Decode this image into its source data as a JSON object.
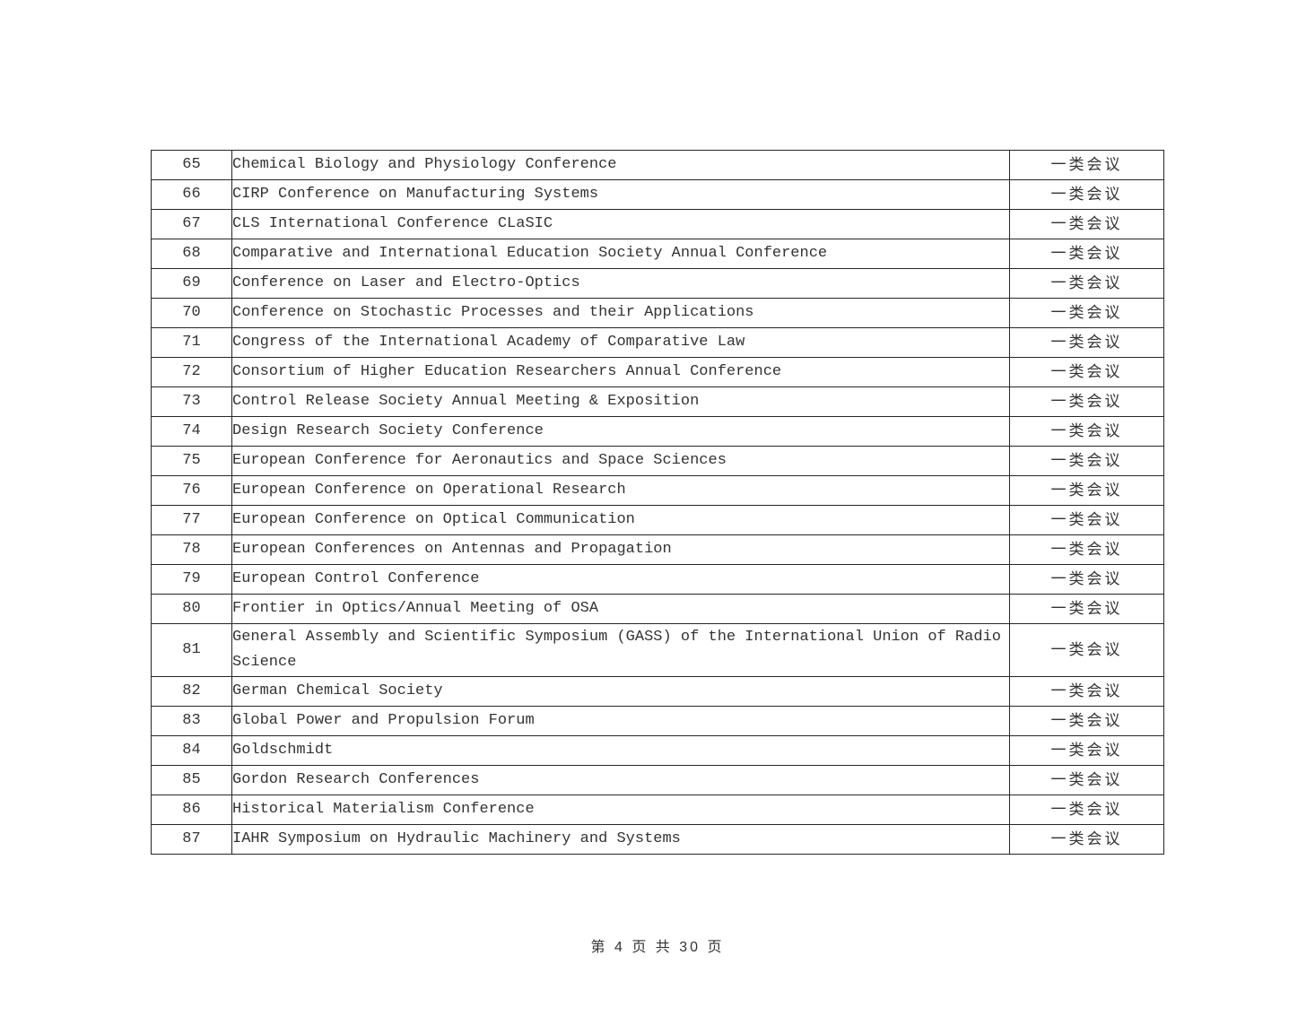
{
  "page": {
    "footer": "第 4 页 共 30 页"
  },
  "table": {
    "columns": [
      "number",
      "conference_name",
      "category"
    ],
    "rows": [
      {
        "no": "65",
        "name": "Chemical Biology and Physiology Conference",
        "category": "一类会议"
      },
      {
        "no": "66",
        "name": "CIRP Conference on Manufacturing Systems",
        "category": "一类会议"
      },
      {
        "no": "67",
        "name": "CLS International Conference CLaSIC",
        "category": "一类会议"
      },
      {
        "no": "68",
        "name": "Comparative and International Education Society Annual Conference",
        "category": "一类会议"
      },
      {
        "no": "69",
        "name": "Conference on Laser and Electro-Optics",
        "category": "一类会议"
      },
      {
        "no": "70",
        "name": "Conference on Stochastic Processes and their Applications",
        "category": "一类会议"
      },
      {
        "no": "71",
        "name": "Congress of the International Academy of Comparative Law",
        "category": "一类会议"
      },
      {
        "no": "72",
        "name": "Consortium of Higher Education Researchers Annual Conference",
        "category": "一类会议"
      },
      {
        "no": "73",
        "name": "Control Release Society Annual Meeting & Exposition",
        "category": "一类会议"
      },
      {
        "no": "74",
        "name": "Design Research Society Conference",
        "category": "一类会议"
      },
      {
        "no": "75",
        "name": "European Conference for Aeronautics and Space Sciences",
        "category": "一类会议"
      },
      {
        "no": "76",
        "name": "European Conference on Operational Research",
        "category": "一类会议"
      },
      {
        "no": "77",
        "name": "European Conference on Optical Communication",
        "category": "一类会议"
      },
      {
        "no": "78",
        "name": "European Conferences on Antennas and Propagation",
        "category": "一类会议"
      },
      {
        "no": "79",
        "name": "European Control Conference",
        "category": "一类会议"
      },
      {
        "no": "80",
        "name": "Frontier in Optics/Annual Meeting of OSA",
        "category": "一类会议"
      },
      {
        "no": "81",
        "name": "General Assembly and Scientific Symposium (GASS) of the International Union of Radio Science",
        "category": "一类会议"
      },
      {
        "no": "82",
        "name": "German Chemical Society",
        "category": "一类会议"
      },
      {
        "no": "83",
        "name": "Global Power and Propulsion Forum",
        "category": "一类会议"
      },
      {
        "no": "84",
        "name": "Goldschmidt",
        "category": "一类会议"
      },
      {
        "no": "85",
        "name": "Gordon Research Conferences",
        "category": "一类会议"
      },
      {
        "no": "86",
        "name": "Historical Materialism Conference",
        "category": "一类会议"
      },
      {
        "no": "87",
        "name": "IAHR Symposium on Hydraulic Machinery and Systems",
        "category": "一类会议"
      }
    ]
  }
}
